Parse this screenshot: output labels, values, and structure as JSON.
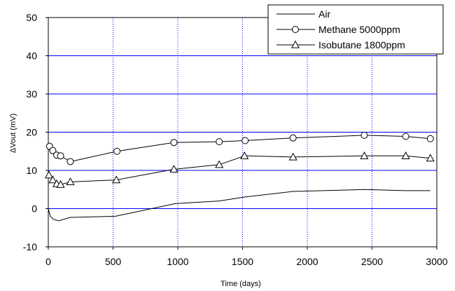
{
  "chart_data": {
    "type": "line",
    "title": "",
    "xlabel": "Time (days)",
    "ylabel": "ΔVout (mV)",
    "xlim": [
      0,
      3000
    ],
    "ylim": [
      -10,
      50
    ],
    "xticks": [
      0,
      500,
      1000,
      1500,
      2000,
      2500,
      3000
    ],
    "yticks": [
      -10,
      0,
      10,
      20,
      30,
      40,
      50
    ],
    "x_grid": "dotted-blue",
    "y_grid": "solid-blue",
    "legend_position": "top-right",
    "series": [
      {
        "name": "Air",
        "marker": "none",
        "points": [
          [
            0,
            0
          ],
          [
            15,
            -2
          ],
          [
            40,
            -2.8
          ],
          [
            80,
            -3.2
          ],
          [
            170,
            -2.3
          ],
          [
            520,
            -2.0
          ],
          [
            980,
            1.3
          ],
          [
            1320,
            2.0
          ],
          [
            1510,
            3.0
          ],
          [
            1890,
            4.5
          ],
          [
            2440,
            5.0
          ],
          [
            2760,
            4.7
          ],
          [
            2950,
            4.7
          ]
        ]
      },
      {
        "name": "Methane 5000ppm",
        "marker": "circle",
        "points": [
          [
            10,
            16.3
          ],
          [
            35,
            15.2
          ],
          [
            65,
            14.0
          ],
          [
            95,
            13.8
          ],
          [
            170,
            12.3
          ],
          [
            530,
            15.0
          ],
          [
            970,
            17.3
          ],
          [
            1320,
            17.5
          ],
          [
            1520,
            17.8
          ],
          [
            1890,
            18.5
          ],
          [
            2440,
            19.2
          ],
          [
            2760,
            18.9
          ],
          [
            2950,
            18.3
          ]
        ]
      },
      {
        "name": "Isobutane 1800ppm",
        "marker": "triangle",
        "points": [
          [
            5,
            8.8
          ],
          [
            35,
            7.5
          ],
          [
            65,
            6.5
          ],
          [
            95,
            6.3
          ],
          [
            170,
            7.0
          ],
          [
            525,
            7.5
          ],
          [
            970,
            10.3
          ],
          [
            1320,
            11.5
          ],
          [
            1515,
            13.8
          ],
          [
            1890,
            13.5
          ],
          [
            2440,
            13.8
          ],
          [
            2760,
            13.8
          ],
          [
            2950,
            13.2
          ]
        ]
      }
    ]
  },
  "colors": {
    "grid": "#0000ff",
    "series": "#000000",
    "frame": "#000000"
  }
}
